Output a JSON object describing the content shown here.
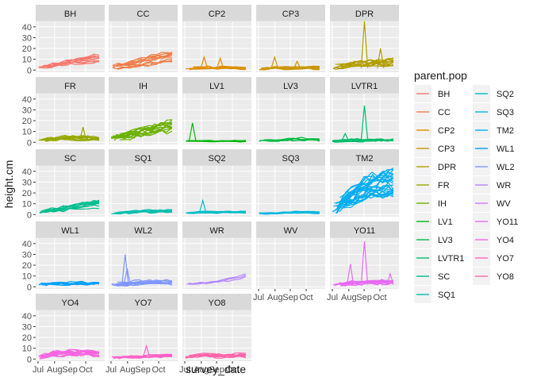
{
  "chart_data": {
    "type": "line",
    "facet_by": "parent.pop",
    "facet_columns": 5,
    "xlabel": "survey_date",
    "ylabel": "height.cm",
    "x_ticks": [
      "Jul",
      "Aug",
      "Sep",
      "Oct"
    ],
    "x_range": [
      "2020-07-01",
      "2020-10-25"
    ],
    "ylim": [
      -2,
      45
    ],
    "y_ticks": [
      0,
      10,
      20,
      30,
      40
    ],
    "grid": true,
    "legend": {
      "title": "parent.pop",
      "placement": "right",
      "columns": 2
    },
    "panel_background": "#ebebeb",
    "strip_background": "#d9d9d9",
    "panels": [
      {
        "name": "BH",
        "color": "#F8766D",
        "baseline": [
          3,
          5,
          8,
          10,
          12
        ],
        "spread": 3,
        "n": 10
      },
      {
        "name": "CC",
        "color": "#EF7F49",
        "baseline": [
          3,
          5,
          8,
          11,
          14
        ],
        "spread": 4,
        "n": 12
      },
      {
        "name": "CP2",
        "color": "#DF8D00",
        "baseline": [
          1,
          2,
          2,
          2,
          2
        ],
        "spread": 2,
        "n": 8,
        "spikes": [
          [
            0.3,
            12
          ],
          [
            0.55,
            11
          ]
        ]
      },
      {
        "name": "CP3",
        "color": "#CC9600",
        "baseline": [
          1,
          2,
          2,
          2,
          2
        ],
        "spread": 2,
        "n": 8,
        "spikes": [
          [
            0.25,
            12
          ],
          [
            0.6,
            8
          ]
        ]
      },
      {
        "name": "DPR",
        "color": "#B39F00",
        "baseline": [
          2,
          5,
          6,
          7,
          8
        ],
        "spread": 4,
        "n": 12,
        "spikes": [
          [
            0.5,
            45
          ],
          [
            0.75,
            20
          ]
        ]
      },
      {
        "name": "FR",
        "color": "#96A900",
        "baseline": [
          1,
          3,
          4,
          4,
          3
        ],
        "spread": 3,
        "n": 10,
        "spikes": [
          [
            0.7,
            14
          ]
        ]
      },
      {
        "name": "IH",
        "color": "#6BB100",
        "baseline": [
          3,
          6,
          9,
          12,
          15
        ],
        "spread": 5,
        "n": 14
      },
      {
        "name": "LV1",
        "color": "#00B70B",
        "baseline": [
          1,
          1,
          1,
          1,
          1
        ],
        "spread": 1,
        "n": 6,
        "spikes": [
          [
            0.12,
            18
          ]
        ]
      },
      {
        "name": "LV3",
        "color": "#00BA42",
        "baseline": [
          1,
          2,
          3,
          3,
          3
        ],
        "spread": 2,
        "n": 6
      },
      {
        "name": "LVTR1",
        "color": "#00BC6B",
        "baseline": [
          1,
          2,
          2,
          2,
          2
        ],
        "spread": 2,
        "n": 8,
        "spikes": [
          [
            0.5,
            34
          ],
          [
            0.2,
            8
          ]
        ]
      },
      {
        "name": "SC",
        "color": "#00BE8E",
        "baseline": [
          2,
          4,
          6,
          8,
          10
        ],
        "spread": 3,
        "n": 10
      },
      {
        "name": "SQ1",
        "color": "#00BFAC",
        "baseline": [
          1,
          2,
          3,
          3,
          3
        ],
        "spread": 2,
        "n": 8
      },
      {
        "name": "SQ2",
        "color": "#00BDC8",
        "baseline": [
          1,
          2,
          2,
          2,
          2
        ],
        "spread": 1,
        "n": 6,
        "spikes": [
          [
            0.28,
            13
          ]
        ]
      },
      {
        "name": "SQ3",
        "color": "#00B7DF",
        "baseline": [
          1,
          1,
          2,
          2,
          2
        ],
        "spread": 1,
        "n": 6
      },
      {
        "name": "TM2",
        "color": "#00ADF1",
        "baseline": [
          4,
          15,
          24,
          28,
          30
        ],
        "spread": 8,
        "n": 26
      },
      {
        "name": "WL1",
        "color": "#00A0FD",
        "baseline": [
          2,
          3,
          3,
          3,
          3
        ],
        "spread": 2,
        "n": 8
      },
      {
        "name": "WL2",
        "color": "#7F96FF",
        "baseline": [
          2,
          3,
          4,
          4,
          4
        ],
        "spread": 3,
        "n": 10,
        "spikes": [
          [
            0.22,
            30
          ],
          [
            0.25,
            17
          ]
        ]
      },
      {
        "name": "WR",
        "color": "#B385FF",
        "baseline": [
          2,
          3,
          5,
          8,
          11
        ],
        "spread": 2,
        "n": 3
      },
      {
        "name": "WV",
        "color": "#D277FF",
        "baseline": [],
        "spread": 0,
        "n": 0
      },
      {
        "name": "YO11",
        "color": "#E76BF3",
        "baseline": [
          1,
          3,
          4,
          4,
          5
        ],
        "spread": 3,
        "n": 10,
        "spikes": [
          [
            0.5,
            42
          ],
          [
            0.28,
            21
          ],
          [
            0.9,
            12
          ]
        ]
      },
      {
        "name": "YO4",
        "color": "#F763E0",
        "baseline": [
          2,
          5,
          6,
          6,
          5
        ],
        "spread": 3,
        "n": 12
      },
      {
        "name": "YO7",
        "color": "#FF61C7",
        "baseline": [
          1,
          2,
          2,
          3,
          3
        ],
        "spread": 2,
        "n": 8,
        "spikes": [
          [
            0.55,
            12
          ]
        ]
      },
      {
        "name": "YO8",
        "color": "#FF65AA",
        "baseline": [
          2,
          3,
          3,
          3,
          3
        ],
        "spread": 3,
        "n": 10
      }
    ]
  }
}
